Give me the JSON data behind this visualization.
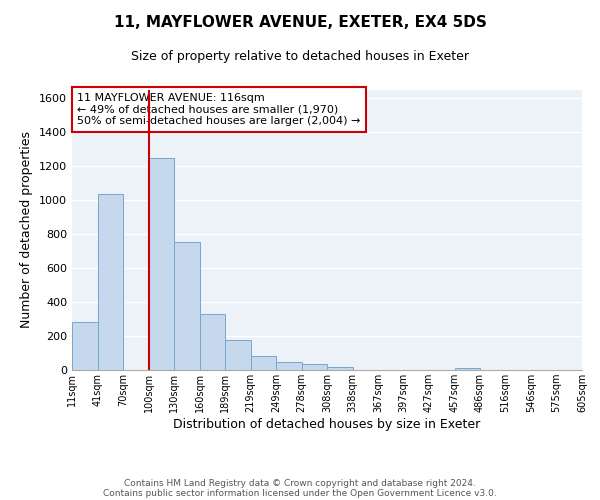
{
  "title": "11, MAYFLOWER AVENUE, EXETER, EX4 5DS",
  "subtitle": "Size of property relative to detached houses in Exeter",
  "xlabel": "Distribution of detached houses by size in Exeter",
  "ylabel": "Number of detached properties",
  "bin_labels": [
    "11sqm",
    "41sqm",
    "70sqm",
    "100sqm",
    "130sqm",
    "160sqm",
    "189sqm",
    "219sqm",
    "249sqm",
    "278sqm",
    "308sqm",
    "338sqm",
    "367sqm",
    "397sqm",
    "427sqm",
    "457sqm",
    "486sqm",
    "516sqm",
    "546sqm",
    "575sqm",
    "605sqm"
  ],
  "bar_heights": [
    280,
    1035,
    0,
    1250,
    755,
    330,
    175,
    85,
    50,
    35,
    20,
    0,
    0,
    0,
    0,
    10,
    0,
    0,
    0,
    0
  ],
  "bar_color": "#c5d8ed",
  "bar_edge_color": "#7aa6cc",
  "vline_x": 3,
  "vline_color": "#cc0000",
  "annotation_text": "11 MAYFLOWER AVENUE: 116sqm\n← 49% of detached houses are smaller (1,970)\n50% of semi-detached houses are larger (2,004) →",
  "annotation_box_color": "#ffffff",
  "annotation_box_edge": "#cc0000",
  "ylim": [
    0,
    1650
  ],
  "yticks": [
    0,
    200,
    400,
    600,
    800,
    1000,
    1200,
    1400,
    1600
  ],
  "footer_line1": "Contains HM Land Registry data © Crown copyright and database right 2024.",
  "footer_line2": "Contains public sector information licensed under the Open Government Licence v3.0.",
  "background_color": "#ffffff",
  "plot_bg_color": "#edf2f9",
  "grid_color": "#ffffff"
}
